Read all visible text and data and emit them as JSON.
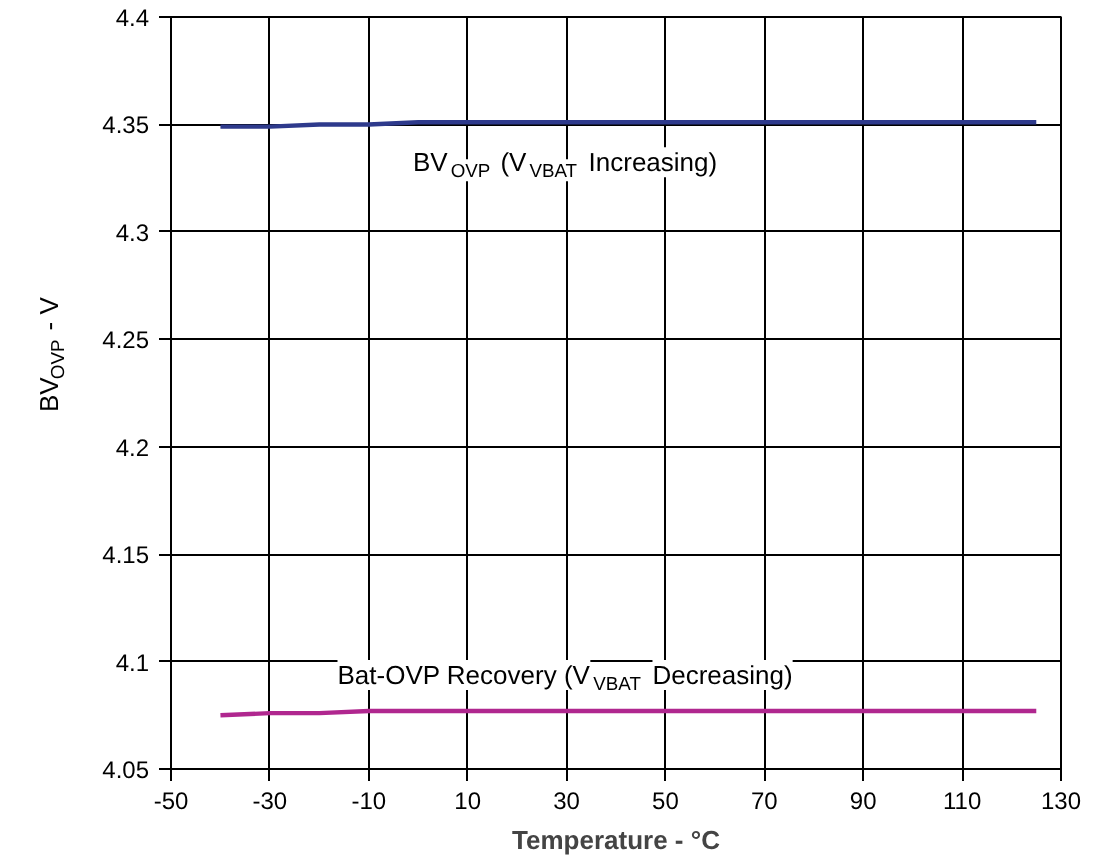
{
  "chart_data": {
    "type": "line",
    "xlabel": "Temperature - °C",
    "ylabel": "BV$_{OVP}$ - V",
    "xlim": [
      -50,
      130
    ],
    "xticks": [
      -50,
      -30,
      -10,
      10,
      30,
      50,
      70,
      90,
      110,
      130
    ],
    "ylim": [
      4.05,
      4.4
    ],
    "yticks": [
      4.05,
      4.1,
      4.15,
      4.2,
      4.25,
      4.3,
      4.35,
      4.4
    ],
    "grid": true,
    "marker": "none",
    "line_style": "solid",
    "series": [
      {
        "color": "#2e3a8c",
        "x": [
          -40,
          -30,
          -20,
          -10,
          0,
          10,
          30,
          50,
          70,
          90,
          110,
          125
        ],
        "values": [
          4.349,
          4.349,
          4.35,
          4.35,
          4.351,
          4.351,
          4.351,
          4.351,
          4.351,
          4.351,
          4.351,
          4.351
        ]
      },
      {
        "color": "#b0278f",
        "x": [
          -40,
          -30,
          -20,
          -10,
          0,
          10,
          30,
          50,
          70,
          90,
          110,
          125
        ],
        "values": [
          4.075,
          4.076,
          4.076,
          4.077,
          4.077,
          4.077,
          4.077,
          4.077,
          4.077,
          4.077,
          4.077,
          4.077
        ]
      }
    ],
    "annotations": [
      "BV$_{OVP}$ (V$_{VBAT}$ Increasing)",
      "Bat-OVP Recovery (V$_{VBAT}$ Decreasing)"
    ]
  }
}
